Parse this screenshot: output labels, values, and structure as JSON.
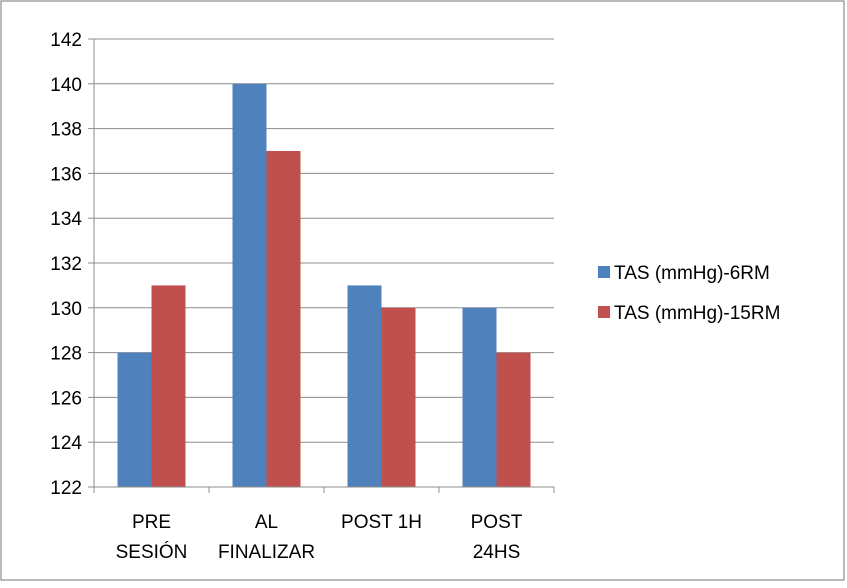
{
  "chart_data": {
    "type": "bar",
    "title": "",
    "xlabel": "",
    "ylabel": "",
    "categories": [
      [
        "PRE",
        "SESIÓN"
      ],
      [
        "AL",
        "FINALIZAR"
      ],
      [
        "POST 1H"
      ],
      [
        "POST",
        "24HS"
      ]
    ],
    "series": [
      {
        "name": "TAS (mmHg)-6RM",
        "color": "#4f81bd",
        "values": [
          128,
          140,
          131,
          130
        ]
      },
      {
        "name": "TAS (mmHg)-15RM",
        "color": "#c0504d",
        "values": [
          131,
          137,
          130,
          128
        ]
      }
    ],
    "ylim": [
      122,
      142
    ],
    "ytick_step": 2,
    "grid": true,
    "legend_position": "right"
  }
}
